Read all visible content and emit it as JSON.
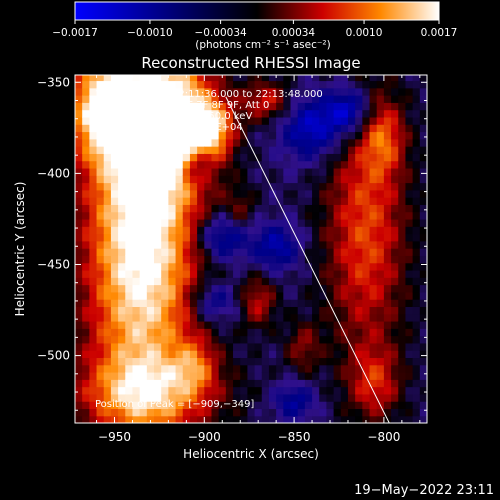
{
  "chart_data": {
    "type": "heatmap",
    "title": "Reconstructed RHESSI Image",
    "xlabel": "Heliocentric X (arcsec)",
    "ylabel": "Heliocentric Y (arcsec)",
    "xlim": [
      -972,
      -776
    ],
    "ylim": [
      -537,
      -346
    ],
    "x_ticks": [
      -950,
      -900,
      -850,
      -800
    ],
    "x_tick_labels": [
      "−950",
      "−900",
      "−850",
      "−800"
    ],
    "y_ticks": [
      -350,
      -400,
      -450,
      -500
    ],
    "y_tick_labels": [
      "−350",
      "−400",
      "−450",
      "−500"
    ],
    "colorbar": {
      "range": [
        -0.0017,
        0.0017
      ],
      "ticks": [
        -0.0017,
        -0.001,
        -0.00034,
        0.00034,
        0.001,
        0.0017
      ],
      "tick_labels": [
        "−0.0017",
        "−0.0010",
        "−0.00034",
        "0.00034",
        "0.0010",
        "0.0017"
      ],
      "unit_label": "(photons cm⁻² s⁻¹ asec⁻²)"
    },
    "annotations": [
      "22−Mar−2015 22:11:36.000 to 22:13:48.000",
      "Detectors: 3F 5F 6F 7F 8F 9F, Att 0",
      "Energy Range: 25.0 − 50.0 keV",
      "Clean     Total counts: 1.74E+04"
    ],
    "peak_label": "Position of Peak = [−909,−349]",
    "limb_line": {
      "x": [
        -888,
        -797
      ],
      "y": [
        -358,
        -537
      ]
    },
    "grid": false,
    "heatmap_model": {
      "background": -0.00025,
      "blobs": [
        {
          "x": -935,
          "y": -425,
          "sx": 22,
          "sy": 80,
          "amp": 0.0022
        },
        {
          "x": -915,
          "y": -372,
          "sx": 16,
          "sy": 22,
          "amp": 0.0016
        },
        {
          "x": -955,
          "y": -365,
          "sx": 14,
          "sy": 18,
          "amp": 0.0016
        },
        {
          "x": -895,
          "y": -375,
          "sx": 8,
          "sy": 10,
          "amp": 0.0012
        },
        {
          "x": -865,
          "y": -360,
          "sx": 10,
          "sy": 8,
          "amp": 0.0009
        },
        {
          "x": -930,
          "y": -520,
          "sx": 28,
          "sy": 14,
          "amp": 0.001
        },
        {
          "x": -905,
          "y": -505,
          "sx": 8,
          "sy": 10,
          "amp": 0.0007
        },
        {
          "x": -870,
          "y": -470,
          "sx": 7,
          "sy": 10,
          "amp": 0.0008
        },
        {
          "x": -810,
          "y": -430,
          "sx": 16,
          "sy": 50,
          "amp": 0.0011
        },
        {
          "x": -800,
          "y": -380,
          "sx": 8,
          "sy": 14,
          "amp": 0.0008
        },
        {
          "x": -845,
          "y": -495,
          "sx": 7,
          "sy": 10,
          "amp": 0.0006
        },
        {
          "x": -805,
          "y": -515,
          "sx": 10,
          "sy": 14,
          "amp": 0.0008
        },
        {
          "x": -880,
          "y": -420,
          "sx": 6,
          "sy": 8,
          "amp": 0.0005
        },
        {
          "x": -840,
          "y": -375,
          "sx": 12,
          "sy": 12,
          "amp": -0.0011
        },
        {
          "x": -820,
          "y": -365,
          "sx": 9,
          "sy": 9,
          "amp": -0.0012
        },
        {
          "x": -890,
          "y": -435,
          "sx": 10,
          "sy": 9,
          "amp": -0.001
        },
        {
          "x": -860,
          "y": -440,
          "sx": 9,
          "sy": 9,
          "amp": -0.0009
        },
        {
          "x": -895,
          "y": -470,
          "sx": 9,
          "sy": 8,
          "amp": -0.0008
        },
        {
          "x": -850,
          "y": -525,
          "sx": 8,
          "sy": 7,
          "amp": -0.0008
        },
        {
          "x": -905,
          "y": -395,
          "sx": 6,
          "sy": 7,
          "amp": -0.0008
        }
      ]
    }
  },
  "footer": {
    "timestamp": "19−May−2022 23:11"
  }
}
